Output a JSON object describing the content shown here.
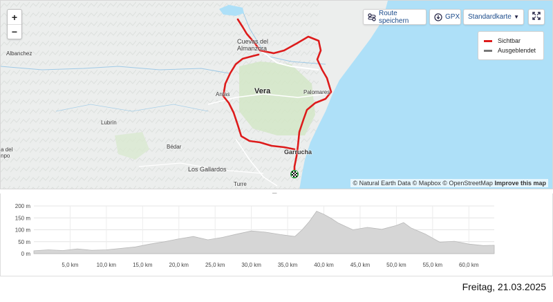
{
  "map": {
    "zoom_in": "+",
    "zoom_out": "−",
    "controls": {
      "save_route": "Route speichern",
      "gpx": "GPX",
      "map_style": "Standardkarte"
    },
    "legend": [
      {
        "label": "Sichtbar",
        "color": "#dd1b1b"
      },
      {
        "label": "Ausgeblendet",
        "color": "#777777"
      }
    ],
    "places": {
      "albanchez": "Albanchez",
      "cuevas": "Cuevas del",
      "almanzora": "Almanzora",
      "vera": "Vera",
      "palomares": "Palomares",
      "antas": "Antas",
      "lubrin": "Lubrín",
      "bedar": "Bédar",
      "garrucha": "Garrucha",
      "los_gallardos": "Los Gallardos",
      "turre": "Turre",
      "edge1": "a del",
      "edge2": "npo"
    },
    "attribution": {
      "text": "© Natural Earth Data © Mapbox © OpenStreetMap",
      "improve": "Improve this map"
    },
    "route_color": "#dd1b1b",
    "sea_color": "#aee0f8"
  },
  "elevation": {
    "y_labels": [
      "200 m",
      "150 m",
      "100 m",
      "50 m",
      "0 m"
    ],
    "x_labels": [
      "5,0 km",
      "10,0 km",
      "15,0 km",
      "20,0 km",
      "25,0 km",
      "30,0 km",
      "35,0 km",
      "40,0 km",
      "45,0 km",
      "50,0 km",
      "55,0 km",
      "60,0 km"
    ],
    "profile_km": [
      0,
      2,
      4,
      6,
      8,
      10,
      12,
      14,
      16,
      18,
      20,
      22,
      24,
      26,
      28,
      30,
      32,
      34,
      36,
      37,
      38,
      39,
      40,
      41,
      42,
      44,
      46,
      48,
      50,
      51,
      52,
      54,
      56,
      58,
      60,
      62,
      63.5
    ],
    "profile_m": [
      12,
      16,
      13,
      20,
      14,
      16,
      22,
      28,
      40,
      50,
      62,
      72,
      58,
      68,
      82,
      95,
      90,
      80,
      72,
      100,
      135,
      178,
      165,
      148,
      128,
      100,
      110,
      102,
      118,
      130,
      108,
      82,
      48,
      52,
      40,
      34,
      35
    ]
  },
  "footer": {
    "date": "Freitag, 21.03.2025"
  }
}
